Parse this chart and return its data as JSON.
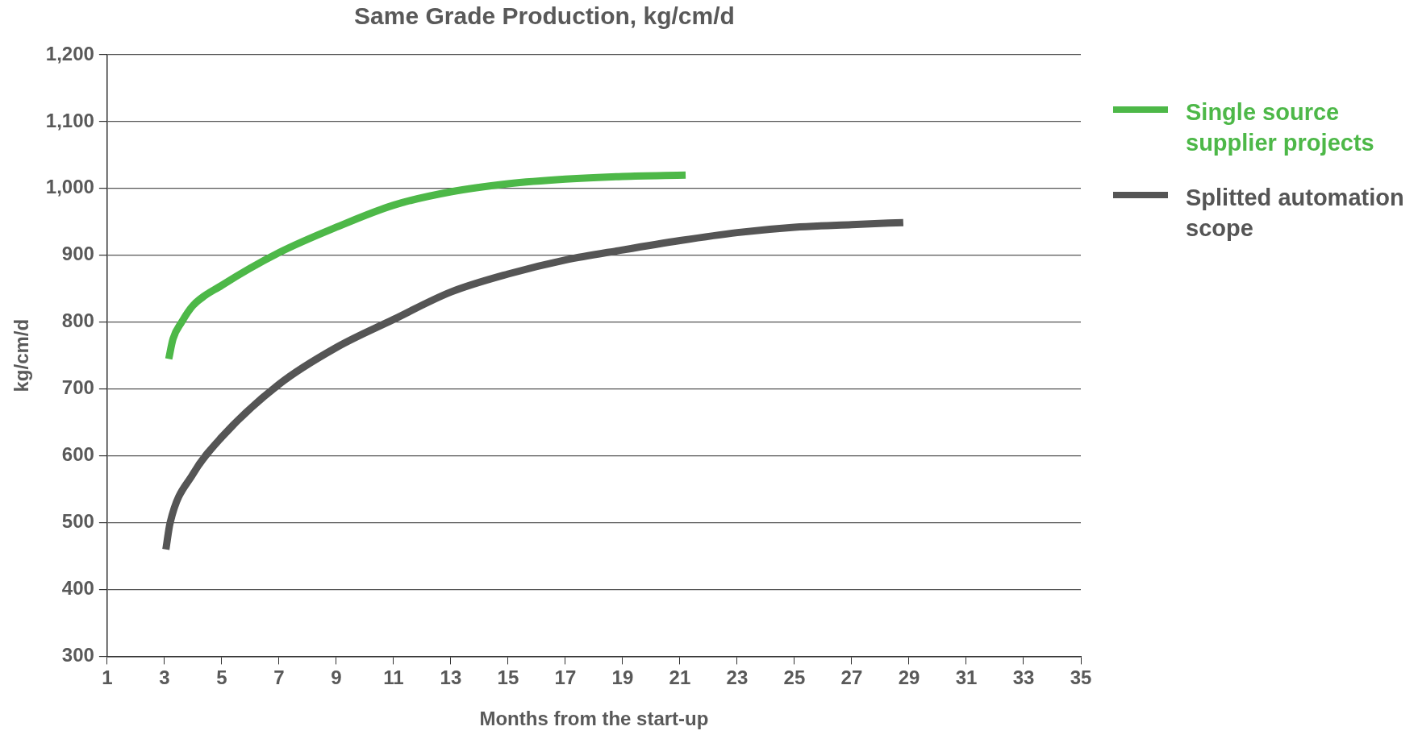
{
  "chart_data": {
    "type": "line",
    "title": "Same Grade Production, kg/cm/d",
    "xlabel": "Months from the start-up",
    "ylabel": "kg/cm/d",
    "xlim": [
      1,
      35
    ],
    "xticks": [
      1,
      3,
      5,
      7,
      9,
      11,
      13,
      15,
      17,
      19,
      21,
      23,
      25,
      27,
      29,
      31,
      33,
      35
    ],
    "ylim": [
      300,
      1200
    ],
    "yticks": [
      {
        "value": 300,
        "label": "300"
      },
      {
        "value": 400,
        "label": "400"
      },
      {
        "value": 500,
        "label": "500"
      },
      {
        "value": 600,
        "label": "600"
      },
      {
        "value": 700,
        "label": "700"
      },
      {
        "value": 800,
        "label": "800"
      },
      {
        "value": 900,
        "label": "900"
      },
      {
        "value": 1000,
        "label": "1,000"
      },
      {
        "value": 1100,
        "label": "1,100"
      },
      {
        "value": 1200,
        "label": "1,200"
      }
    ],
    "grid": "y",
    "legend": "right",
    "marker": "none",
    "line_style": "solid",
    "series": [
      {
        "name": "Single source supplier projects",
        "color": "#4db848",
        "x": [
          3.15,
          3.3,
          3.6,
          4,
          5,
          7,
          9,
          11,
          13,
          15,
          17,
          19,
          21.2
        ],
        "values": [
          745,
          775,
          800,
          825,
          855,
          904,
          942,
          975,
          995,
          1007,
          1014,
          1018,
          1020
        ]
      },
      {
        "name": "Splitted automation scope",
        "color": "#555555",
        "x": [
          3.05,
          3.2,
          4,
          5,
          7,
          9,
          11,
          13,
          15,
          17,
          19,
          21,
          23,
          25,
          27,
          28.8
        ],
        "values": [
          460,
          500,
          573,
          628,
          707,
          762,
          804,
          845,
          872,
          893,
          908,
          922,
          934,
          942,
          946,
          949
        ]
      }
    ]
  }
}
